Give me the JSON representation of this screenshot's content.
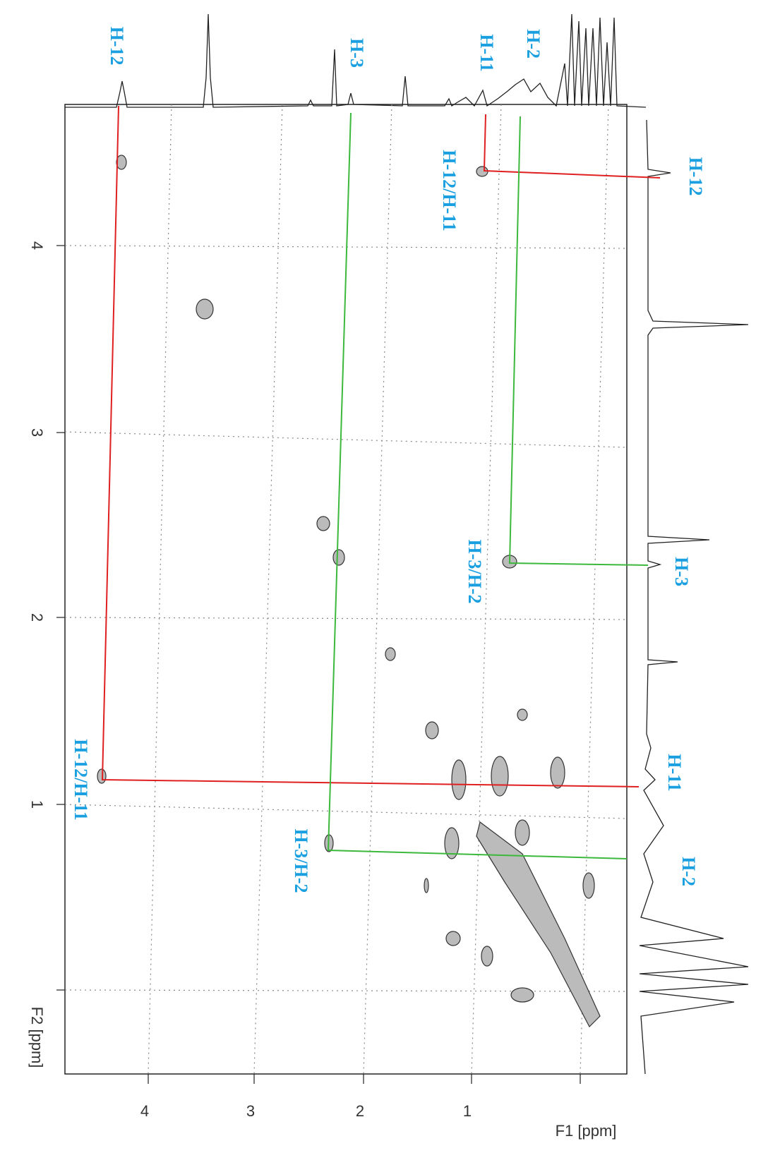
{
  "axes": {
    "f2_label": "F2 [ppm]",
    "f2_ticks": [
      "4",
      "3",
      "2",
      "1"
    ],
    "f1_label": "F1 [ppm]",
    "f1_ticks": [
      "4",
      "3",
      "2",
      "1"
    ]
  },
  "annotations": {
    "top": [
      "H-12",
      "H-3",
      "H-11",
      "H-2"
    ],
    "right": [
      "H-12",
      "H-3",
      "H-11",
      "H-2"
    ],
    "cross_peaks": [
      "H-12/H-11",
      "H-3/H-2",
      "H-12/H-11",
      "H-3/H-2"
    ]
  }
}
